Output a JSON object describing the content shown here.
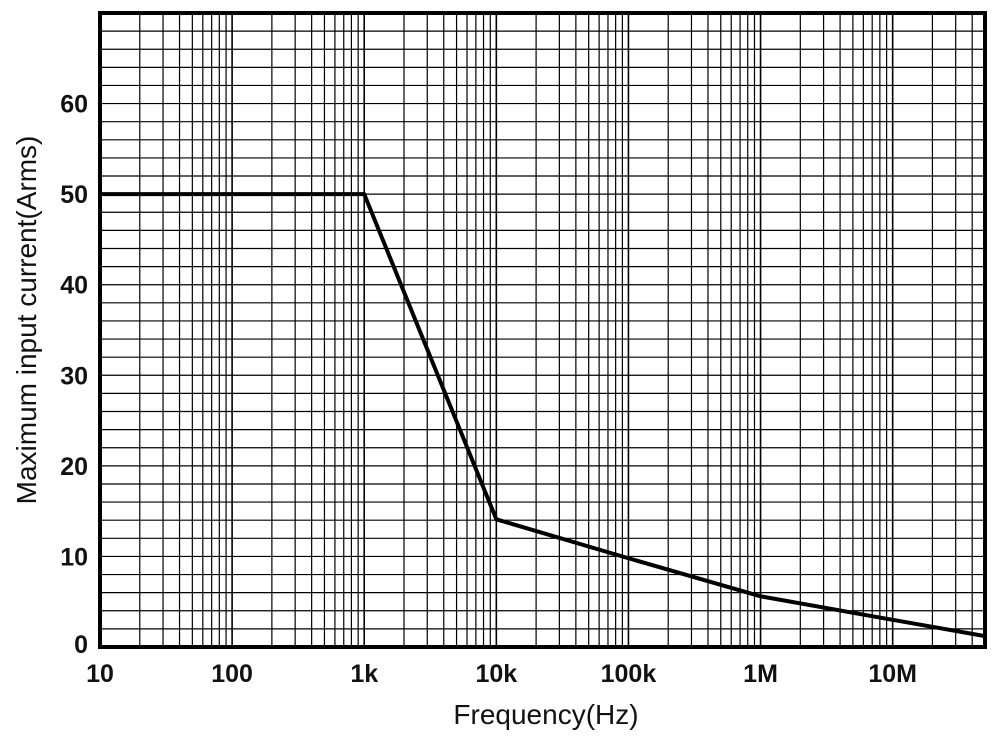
{
  "chart_data": {
    "type": "line",
    "title": "",
    "xlabel": "Frequency(Hz)",
    "ylabel": "Maximum input current(Arms)",
    "xscale": "log",
    "xlim": [
      10,
      50000000
    ],
    "ylim": [
      0,
      70
    ],
    "grid": true,
    "x_ticks": [
      {
        "value": 10,
        "label": "10"
      },
      {
        "value": 100,
        "label": "100"
      },
      {
        "value": 1000,
        "label": "1k"
      },
      {
        "value": 10000,
        "label": "10k"
      },
      {
        "value": 100000,
        "label": "100k"
      },
      {
        "value": 1000000,
        "label": "1M"
      },
      {
        "value": 10000000,
        "label": "10M"
      }
    ],
    "y_ticks": [
      {
        "value": 0,
        "label": "0"
      },
      {
        "value": 10,
        "label": "10"
      },
      {
        "value": 20,
        "label": "20"
      },
      {
        "value": 30,
        "label": "30"
      },
      {
        "value": 40,
        "label": "40"
      },
      {
        "value": 50,
        "label": "50"
      },
      {
        "value": 60,
        "label": "60"
      }
    ],
    "y_minor_step": 2,
    "series": [
      {
        "name": "Maximum input current",
        "color": "#000000",
        "x": [
          10,
          1000,
          10000,
          100000,
          1000000,
          10000000,
          50000000
        ],
        "y": [
          50,
          50,
          14.1,
          9.8,
          5.6,
          3.0,
          1.2
        ]
      }
    ]
  }
}
